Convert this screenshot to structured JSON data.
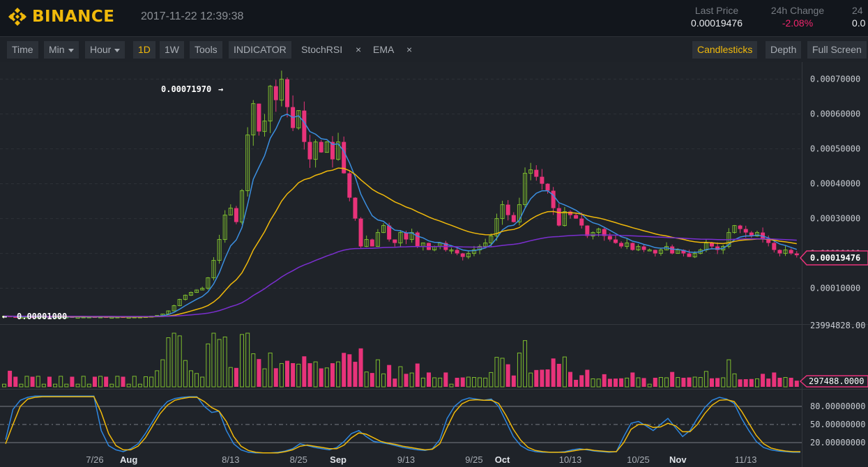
{
  "header": {
    "brand": "BINANCE",
    "datetime": "2017-11-22 12:39:38",
    "stats": [
      {
        "label": "Last Price",
        "value": "0.00019476"
      },
      {
        "label": "24h Change",
        "value": "-2.08%"
      },
      {
        "label": "24",
        "value": "0.0"
      }
    ]
  },
  "toolbar": {
    "time": "Time",
    "min": "Min",
    "hour": "Hour",
    "d1": "1D",
    "w1": "1W",
    "tools": "Tools",
    "indicator": "INDICATOR",
    "stochrsi": "StochRSI",
    "ema": "EMA",
    "close_glyph": "×",
    "candlesticks": "Candlesticks",
    "depth": "Depth",
    "fullscreen": "Full Screen"
  },
  "colors": {
    "up": "#7ebd2e",
    "down": "#e8337a",
    "ema_fast": "#3b8fe0",
    "ema_mid": "#f0b90b",
    "ema_slow": "#7b2fd0",
    "stoch_k": "#2e86de",
    "stoch_d": "#f0b90b"
  },
  "chart_data": {
    "type": "candlestick",
    "price_axis": {
      "ticks": [
        "0.00070000",
        "0.00060000",
        "0.00050000",
        "0.00040000",
        "0.00030000",
        "0.00020000",
        "0.00010000"
      ],
      "tick_values": [
        0.0007,
        0.0006,
        0.0005,
        0.0004,
        0.0003,
        0.0002,
        0.0001
      ],
      "ylim": [
        -9.3e-07,
        0.00074933
      ],
      "last_price_label": "0.00019476",
      "last_price": 0.00019476
    },
    "annotations": {
      "high": {
        "label": "0.00071970",
        "value": 0.0007197
      },
      "low": {
        "label": "0.00001000",
        "value": 1e-05
      }
    },
    "volume_axis": {
      "max_label": "23994828.00",
      "max": 23994828,
      "current_label": "297488.0000",
      "current": 297488
    },
    "stoch_axis": {
      "ticks": [
        "80.00000000",
        "50.00000000",
        "20.00000000"
      ],
      "tick_values": [
        80,
        50,
        20
      ]
    },
    "x_labels": [
      {
        "text": "7/26",
        "index": 16,
        "bold": false
      },
      {
        "text": "Aug",
        "index": 22,
        "bold": true
      },
      {
        "text": "8/13",
        "index": 40,
        "bold": false
      },
      {
        "text": "8/25",
        "index": 52,
        "bold": false
      },
      {
        "text": "Sep",
        "index": 59,
        "bold": true
      },
      {
        "text": "9/13",
        "index": 71,
        "bold": false
      },
      {
        "text": "9/25",
        "index": 83,
        "bold": false
      },
      {
        "text": "Oct",
        "index": 88,
        "bold": true
      },
      {
        "text": "10/13",
        "index": 100,
        "bold": false
      },
      {
        "text": "10/25",
        "index": 112,
        "bold": false
      },
      {
        "text": "Nov",
        "index": 119,
        "bold": true
      },
      {
        "text": "11/13",
        "index": 131,
        "bold": false
      }
    ],
    "closes": [
      2e-05,
      1.8e-05,
      1.7e-05,
      1.7e-05,
      1.8e-05,
      1.7e-05,
      1.8e-05,
      1.8e-05,
      1.7e-05,
      1.7e-05,
      1.8e-05,
      1.8e-05,
      1.7e-05,
      1.7e-05,
      1.8e-05,
      1.8e-05,
      1.7e-05,
      1.8e-05,
      1.7e-05,
      1.7e-05,
      1.8e-05,
      1.7e-05,
      1.7e-05,
      1.8e-05,
      1.8e-05,
      1.9e-05,
      2e-05,
      2.2e-05,
      2.6e-05,
      3.5e-05,
      5e-05,
      6.8e-05,
      8e-05,
      8.8e-05,
      9.5e-05,
      0.0001,
      0.00013,
      0.00018,
      0.00024,
      0.00031,
      0.00033,
      0.00029,
      0.00038,
      0.00054,
      0.00063,
      0.00055,
      0.00058,
      0.00068,
      0.00064,
      0.0007,
      0.00062,
      0.00056,
      0.00061,
      0.00052,
      0.00047,
      0.00052,
      0.00049,
      0.00052,
      0.00047,
      0.00052,
      0.00043,
      0.00036,
      0.0003,
      0.00022,
      0.00024,
      0.00022,
      0.00026,
      0.00028,
      0.00024,
      0.00023,
      0.00026,
      0.00024,
      0.00026,
      0.00022,
      0.00023,
      0.00021,
      0.00022,
      0.00023,
      0.00021,
      0.00021,
      0.0002,
      0.00019,
      0.0002,
      0.00021,
      0.00022,
      0.00023,
      0.00025,
      0.0003,
      0.00034,
      0.00031,
      0.00029,
      0.00034,
      0.00043,
      0.00044,
      0.00042,
      0.0004,
      0.00038,
      0.00033,
      0.00028,
      0.00032,
      0.00031,
      0.0003,
      0.00028,
      0.00025,
      0.00026,
      0.00027,
      0.00025,
      0.00024,
      0.00023,
      0.00022,
      0.00023,
      0.00021,
      0.00022,
      0.00021,
      0.00021,
      0.0002,
      0.00021,
      0.00022,
      0.0002,
      0.00021,
      0.0002,
      0.00019,
      0.0002,
      0.00021,
      0.00023,
      0.00022,
      0.00021,
      0.00022,
      0.00026,
      0.00028,
      0.00027,
      0.00026,
      0.00025,
      0.00026,
      0.00024,
      0.00023,
      0.00021,
      0.0002,
      0.00021,
      0.0002,
      0.00019476
    ],
    "stoch_k": [
      25,
      75,
      90,
      95,
      97,
      97,
      97,
      97,
      97,
      97,
      97,
      97,
      97,
      40,
      15,
      8,
      5,
      10,
      18,
      35,
      55,
      75,
      88,
      93,
      95,
      96,
      96,
      80,
      70,
      72,
      40,
      18,
      8,
      4,
      3,
      3,
      3,
      4,
      6,
      10,
      18,
      15,
      12,
      10,
      8,
      12,
      22,
      35,
      40,
      30,
      22,
      20,
      18,
      15,
      12,
      10,
      8,
      7,
      10,
      25,
      60,
      80,
      90,
      94,
      92,
      90,
      92,
      80,
      55,
      30,
      15,
      8,
      5,
      4,
      4,
      4,
      5,
      8,
      10,
      8,
      6,
      5,
      4,
      5,
      30,
      52,
      55,
      48,
      40,
      50,
      60,
      45,
      30,
      40,
      60,
      78,
      90,
      95,
      92,
      85,
      60,
      40,
      22,
      12,
      8,
      6,
      5,
      4,
      4
    ],
    "stoch_d": [
      18,
      50,
      80,
      92,
      95,
      96,
      96,
      96,
      96,
      96,
      96,
      96,
      96,
      70,
      35,
      15,
      8,
      8,
      14,
      28,
      48,
      68,
      82,
      90,
      93,
      95,
      95,
      88,
      78,
      72,
      55,
      30,
      14,
      7,
      4,
      3,
      3,
      3,
      5,
      8,
      14,
      16,
      14,
      12,
      10,
      10,
      16,
      28,
      36,
      34,
      28,
      22,
      19,
      17,
      14,
      12,
      10,
      8,
      9,
      18,
      45,
      70,
      84,
      90,
      91,
      90,
      90,
      85,
      65,
      42,
      24,
      12,
      7,
      5,
      4,
      4,
      4,
      6,
      8,
      9,
      7,
      6,
      5,
      5,
      20,
      42,
      50,
      50,
      45,
      46,
      52,
      48,
      38,
      38,
      50,
      68,
      82,
      90,
      91,
      88,
      72,
      52,
      32,
      18,
      11,
      8,
      6,
      5,
      5
    ]
  }
}
